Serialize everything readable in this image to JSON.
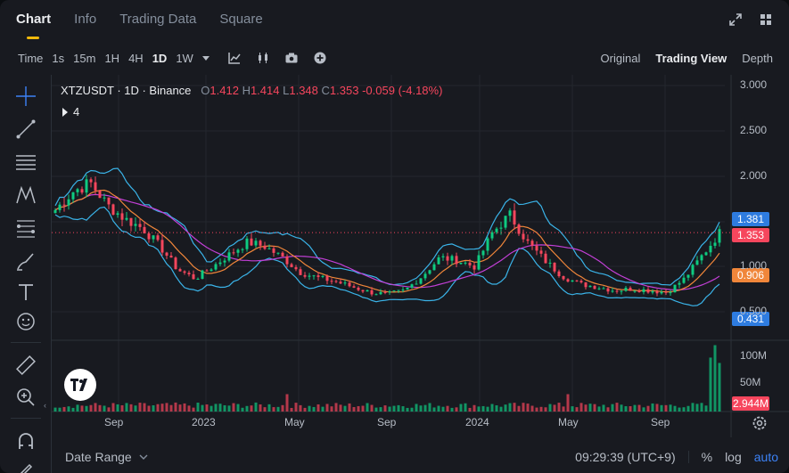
{
  "tabs": [
    {
      "label": "Chart"
    },
    {
      "label": "Info"
    },
    {
      "label": "Trading Data"
    },
    {
      "label": "Square"
    }
  ],
  "toolbar": {
    "time_label": "Time",
    "intervals": [
      "1s",
      "15m",
      "1H",
      "4H",
      "1D",
      "1W"
    ],
    "active_interval": "1D",
    "views": [
      "Original",
      "Trading View",
      "Depth"
    ],
    "active_view": "Trading View"
  },
  "legend": {
    "symbol": "XTZUSDT · 1D · Binance",
    "o_label": "O",
    "o": "1.412",
    "h_label": "H",
    "h": "1.414",
    "l_label": "L",
    "l": "1.348",
    "c_label": "C",
    "c": "1.353",
    "change": "-0.059 (-4.18%)",
    "indicators_count": "4"
  },
  "price_axis": [
    "3.000",
    "2.500",
    "2.000",
    "1.000",
    "0.500"
  ],
  "volume_axis": [
    "100M",
    "50M"
  ],
  "time_axis": [
    "Sep",
    "2023",
    "May",
    "Sep",
    "2024",
    "May",
    "Sep"
  ],
  "tags": {
    "upper": "1.381",
    "last": "1.353",
    "mid": "0.906",
    "lower": "0.431",
    "volume": "2.944M"
  },
  "footer": {
    "date_range": "Date Range",
    "clock": "09:29:39 (UTC+9)",
    "percent": "%",
    "log": "log",
    "auto": "auto"
  },
  "colors": {
    "up": "#0ecb81",
    "down": "#f6465d",
    "accent": "#f0b90b",
    "bb": "#3ab3e8",
    "ma_long": "#c23fd6",
    "ma_short": "#f0863a"
  },
  "chart_data": {
    "type": "candlestick",
    "symbol": "XTZUSDT",
    "interval": "1D",
    "close_series": [
      1.6,
      1.8,
      1.9,
      1.65,
      1.5,
      1.4,
      1.2,
      0.95,
      0.85,
      0.98,
      1.12,
      1.25,
      1.2,
      1.08,
      0.92,
      0.86,
      0.82,
      0.76,
      0.7,
      0.68,
      0.72,
      0.88,
      1.08,
      1.05,
      0.98,
      1.35,
      1.55,
      1.25,
      1.05,
      0.88,
      0.79,
      0.76,
      0.72,
      0.74,
      0.72,
      0.7,
      0.85,
      1.1,
      1.35
    ],
    "ylim": [
      0.4,
      3.0
    ]
  }
}
